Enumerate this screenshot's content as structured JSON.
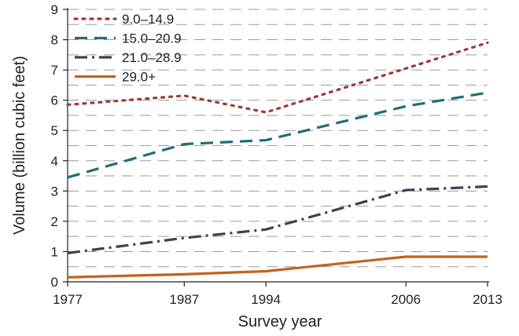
{
  "chart_data": {
    "type": "line",
    "title": "",
    "xlabel": "Survey year",
    "ylabel": "Volume (billion cubic feet)",
    "x": [
      1977,
      1987,
      1994,
      2006,
      2013
    ],
    "x_tick_labels": [
      "1977",
      "1987",
      "1994",
      "2006",
      "2013"
    ],
    "ylim": [
      0,
      9
    ],
    "y_ticks": [
      0,
      1,
      2,
      3,
      4,
      5,
      6,
      7,
      8,
      9
    ],
    "y_tick_labels": [
      "0",
      "1",
      "2",
      "3",
      "4",
      "5",
      "6",
      "7",
      "8",
      "9"
    ],
    "grid": "horizontal dashed, every 0.5",
    "legend_position": "top-left",
    "series": [
      {
        "name": "9.0–14.9",
        "values": [
          5.85,
          6.15,
          5.6,
          7.05,
          7.9
        ],
        "color": "#9e3a31",
        "style": "dotted"
      },
      {
        "name": "15.0–20.9",
        "values": [
          3.45,
          4.55,
          4.68,
          5.8,
          6.25
        ],
        "color": "#1f6e7a",
        "style": "dashed"
      },
      {
        "name": "21.0–28.9",
        "values": [
          0.95,
          1.45,
          1.73,
          3.03,
          3.15
        ],
        "color": "#4a3a4f",
        "style": "dash-dot"
      },
      {
        "name": "29.0+",
        "values": [
          0.15,
          0.25,
          0.35,
          0.83,
          0.83
        ],
        "color": "#c4611f",
        "style": "solid"
      }
    ]
  }
}
